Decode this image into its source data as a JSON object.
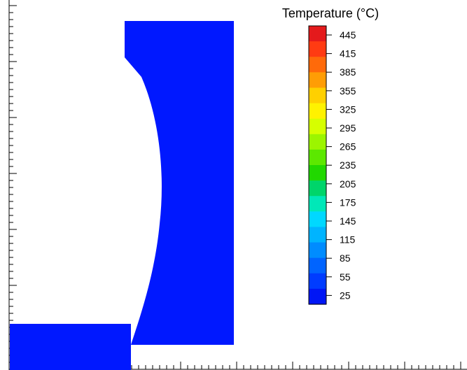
{
  "legend": {
    "title": "Temperature (°C)",
    "labels": [
      "445",
      "415",
      "385",
      "355",
      "325",
      "295",
      "265",
      "235",
      "205",
      "175",
      "145",
      "115",
      "85",
      "55",
      "25"
    ],
    "colors": [
      "#e41a1c",
      "#ff3b12",
      "#ff6a0a",
      "#ff9d05",
      "#ffd000",
      "#fff200",
      "#d6ff00",
      "#9cf500",
      "#5ce800",
      "#21d800",
      "#00d56a",
      "#00e8b8",
      "#00d8ff",
      "#00b4ff",
      "#008cff",
      "#0064ff",
      "#003cff",
      "#0016f5"
    ]
  },
  "part_color": "#0018ff"
}
